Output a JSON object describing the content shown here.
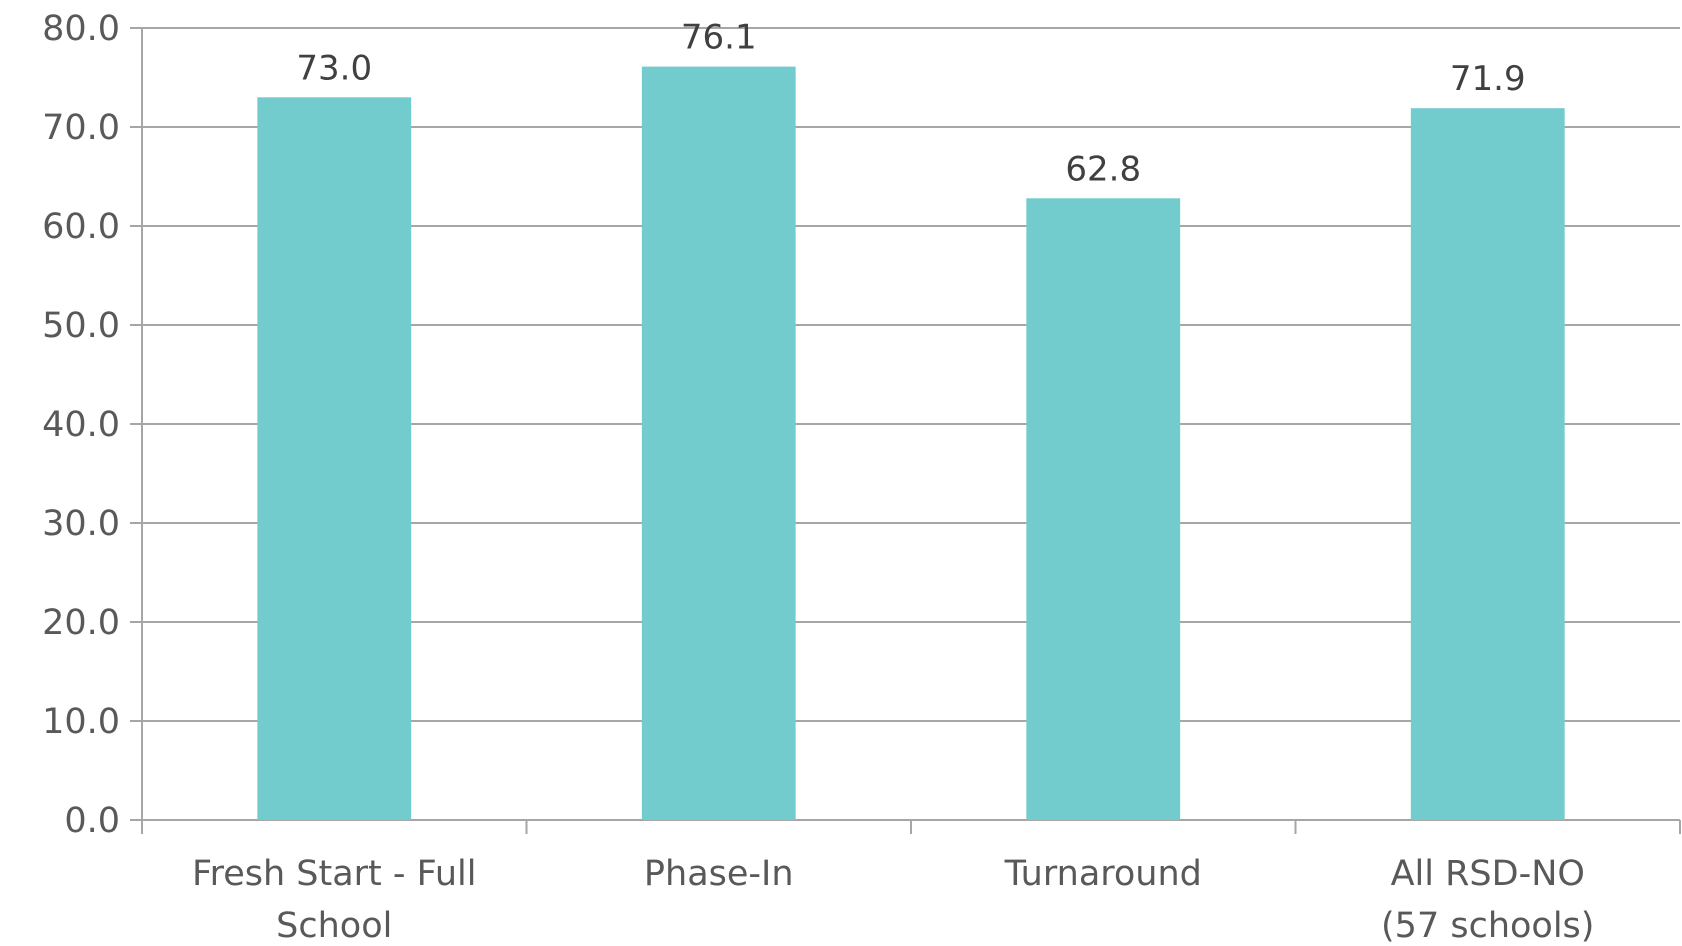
{
  "chart_data": {
    "type": "bar",
    "title": "",
    "xlabel": "",
    "ylabel": "",
    "categories": [
      [
        "Fresh Start - Full",
        "School"
      ],
      [
        "Phase-In"
      ],
      [
        "Turnaround"
      ],
      [
        "All RSD-NO",
        "(57 schools)"
      ]
    ],
    "values": [
      73.0,
      76.1,
      62.8,
      71.9
    ],
    "data_labels": [
      "73.0",
      "76.1",
      "62.8",
      "71.9"
    ],
    "ylim": [
      0,
      80
    ],
    "yticks": [
      "0.0",
      "10.0",
      "20.0",
      "30.0",
      "40.0",
      "50.0",
      "60.0",
      "70.0",
      "80.0"
    ],
    "ytick_values": [
      0,
      10,
      20,
      30,
      40,
      50,
      60,
      70,
      80
    ],
    "grid": true,
    "legend": "none",
    "bar_color": "#72CBCD",
    "grid_color": "#A6A6A6",
    "text_color": "#595959"
  }
}
